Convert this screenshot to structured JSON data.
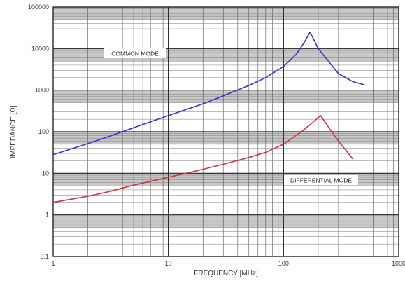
{
  "chart_data": {
    "type": "line",
    "xlabel": "FREQUENCY [MHz]",
    "ylabel": "IMPEDANCE [Ω]",
    "x_scale": "log",
    "y_scale": "log",
    "xlim": [
      1,
      1000
    ],
    "ylim": [
      0.1,
      100000
    ],
    "x_ticks": [
      {
        "value": 1,
        "label": "1"
      },
      {
        "value": 10,
        "label": "10"
      },
      {
        "value": 100,
        "label": "100"
      },
      {
        "value": 1000,
        "label": "1000"
      }
    ],
    "y_ticks": [
      {
        "value": 100000,
        "label": "100000"
      },
      {
        "value": 10000,
        "label": "10000"
      },
      {
        "value": 1000,
        "label": "1000"
      },
      {
        "value": 100,
        "label": "100"
      },
      {
        "value": 10,
        "label": "10"
      },
      {
        "value": 1,
        "label": "1"
      },
      {
        "value": 0.1,
        "label": "0.1"
      }
    ],
    "grid": true,
    "banded_decades": true,
    "series": [
      {
        "name": "COMMON MODE",
        "color": "#3333cc",
        "x": [
          1,
          2,
          3,
          5,
          10,
          20,
          30,
          50,
          70,
          100,
          130,
          150,
          170,
          200,
          300,
          400,
          500
        ],
        "y": [
          28,
          52,
          76,
          125,
          245,
          470,
          730,
          1300,
          2000,
          3700,
          7500,
          13500,
          25000,
          10000,
          2500,
          1600,
          1350
        ]
      },
      {
        "name": "DIFFERENTIAL MODE",
        "color": "#cc3344",
        "x": [
          1,
          2,
          3,
          5,
          10,
          20,
          30,
          50,
          70,
          100,
          150,
          180,
          210,
          250,
          300,
          400
        ],
        "y": [
          2,
          2.8,
          3.6,
          5.2,
          8,
          12.5,
          16.5,
          24,
          32,
          50,
          110,
          170,
          245,
          120,
          60,
          22
        ]
      }
    ],
    "annotations": [
      {
        "text": "COMMON MODE",
        "series": "COMMON MODE"
      },
      {
        "text": "DIFFERENTIAL MODE",
        "series": "DIFFERENTIAL MODE"
      }
    ]
  }
}
